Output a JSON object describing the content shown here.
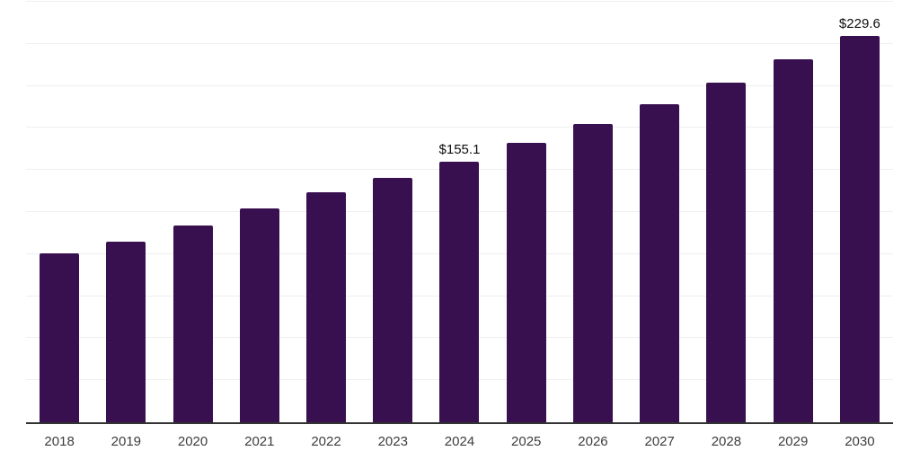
{
  "chart_data": {
    "type": "bar",
    "title": "",
    "xlabel": "",
    "ylabel": "",
    "categories": [
      "2018",
      "2019",
      "2020",
      "2021",
      "2022",
      "2023",
      "2024",
      "2025",
      "2026",
      "2027",
      "2028",
      "2029",
      "2030"
    ],
    "values": [
      100.4,
      107.2,
      117.0,
      127.1,
      136.8,
      145.4,
      155.1,
      166.0,
      177.3,
      189.0,
      202.0,
      215.9,
      229.6
    ],
    "data_labels": [
      {
        "index": 6,
        "text": "$155.1"
      },
      {
        "index": 12,
        "text": "$229.6"
      }
    ],
    "ylim": [
      0,
      250
    ],
    "gridline_step": 25,
    "grid": "horizontal-only",
    "legend": "none",
    "bar_color": "#381050",
    "background_color": "#ffffff"
  },
  "styles": {
    "gridline_color": "#efefef",
    "axis_line_color": "#333333",
    "tick_label_color": "#3d3d3d",
    "data_label_color": "#0d0d0d"
  }
}
